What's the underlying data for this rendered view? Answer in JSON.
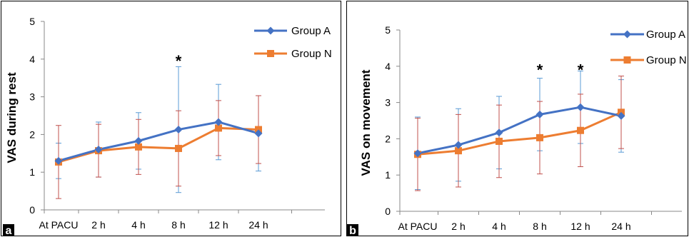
{
  "colors": {
    "group_a": "#4472C4",
    "group_n": "#ED7D31",
    "group_a_error": "#5B9BD5",
    "group_n_error": "#C0504D",
    "axis": "#888888",
    "panel_border": "#000000",
    "panel_label_bg": "#000000",
    "panel_label_text": "#ffffff"
  },
  "chart_data": [
    {
      "type": "line",
      "panel_label": "a",
      "ylabel": "VAS during rest",
      "xlabel": "",
      "categories": [
        "At PACU",
        "2 h",
        "4 h",
        "8 h",
        "12 h",
        "24 h"
      ],
      "ylim": [
        0,
        5
      ],
      "yticks": [
        0,
        1,
        2,
        3,
        4,
        5
      ],
      "grid": false,
      "legend": "top-right",
      "series": [
        {
          "name": "Group A",
          "marker": "diamond",
          "values": [
            1.3,
            1.6,
            1.83,
            2.13,
            2.33,
            2.03
          ],
          "error": [
            0.47,
            0.73,
            0.75,
            1.67,
            1.0,
            1.0
          ]
        },
        {
          "name": "Group N",
          "marker": "square",
          "values": [
            1.27,
            1.57,
            1.67,
            1.63,
            2.17,
            2.13
          ],
          "error": [
            0.97,
            0.7,
            0.73,
            1.0,
            0.73,
            0.9
          ]
        }
      ],
      "annotations": [
        {
          "text": "*",
          "category": "8 h",
          "y": 4.0
        }
      ]
    },
    {
      "type": "line",
      "panel_label": "b",
      "ylabel": "VAS on movement",
      "xlabel": "",
      "categories": [
        "At PACU",
        "2 h",
        "4 h",
        "8 h",
        "12 h",
        "24 h"
      ],
      "ylim": [
        0,
        5
      ],
      "yticks": [
        0,
        1,
        2,
        3,
        4,
        5
      ],
      "grid": false,
      "legend": "top-right",
      "series": [
        {
          "name": "Group A",
          "marker": "diamond",
          "values": [
            1.6,
            1.83,
            2.17,
            2.67,
            2.87,
            2.63
          ],
          "error": [
            1.0,
            1.0,
            1.0,
            1.0,
            1.0,
            1.0
          ]
        },
        {
          "name": "Group N",
          "marker": "square",
          "values": [
            1.57,
            1.67,
            1.93,
            2.03,
            2.23,
            2.73
          ],
          "error": [
            1.0,
            1.0,
            1.0,
            1.0,
            1.0,
            1.0
          ]
        }
      ],
      "annotations": [
        {
          "text": "*",
          "category": "8 h",
          "y": 3.95
        },
        {
          "text": "*",
          "category": "12 h",
          "y": 3.95
        }
      ]
    }
  ]
}
